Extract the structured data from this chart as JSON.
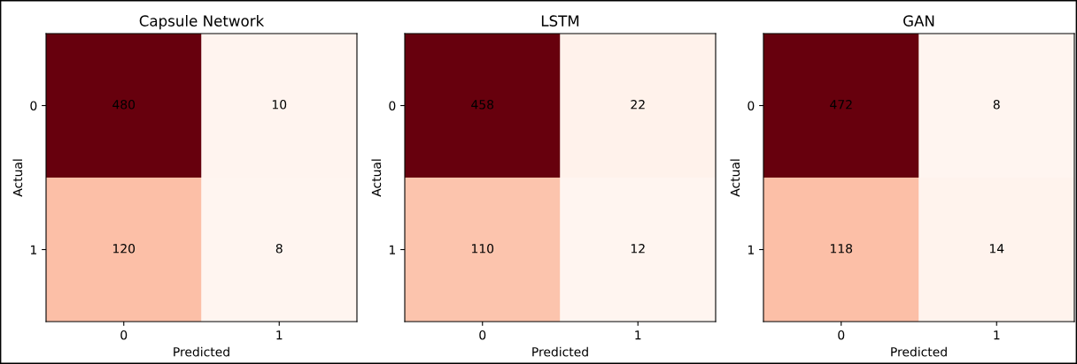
{
  "chart_data": [
    {
      "type": "heatmap",
      "title": "Capsule Network",
      "xlabel": "Predicted",
      "ylabel": "Actual",
      "categories": [
        "0",
        "1"
      ],
      "y_categories": [
        "0",
        "1"
      ],
      "cells": [
        [
          480,
          10
        ],
        [
          120,
          8
        ]
      ],
      "data_labels": true
    },
    {
      "type": "heatmap",
      "title": "LSTM",
      "xlabel": "Predicted",
      "ylabel": "Actual",
      "categories": [
        "0",
        "1"
      ],
      "y_categories": [
        "0",
        "1"
      ],
      "cells": [
        [
          458,
          22
        ],
        [
          110,
          12
        ]
      ],
      "data_labels": true
    },
    {
      "type": "heatmap",
      "title": "GAN",
      "xlabel": "Predicted",
      "ylabel": "Actual",
      "categories": [
        "0",
        "1"
      ],
      "y_categories": [
        "0",
        "1"
      ],
      "cells": [
        [
          472,
          8
        ],
        [
          118,
          14
        ]
      ],
      "data_labels": true
    }
  ]
}
